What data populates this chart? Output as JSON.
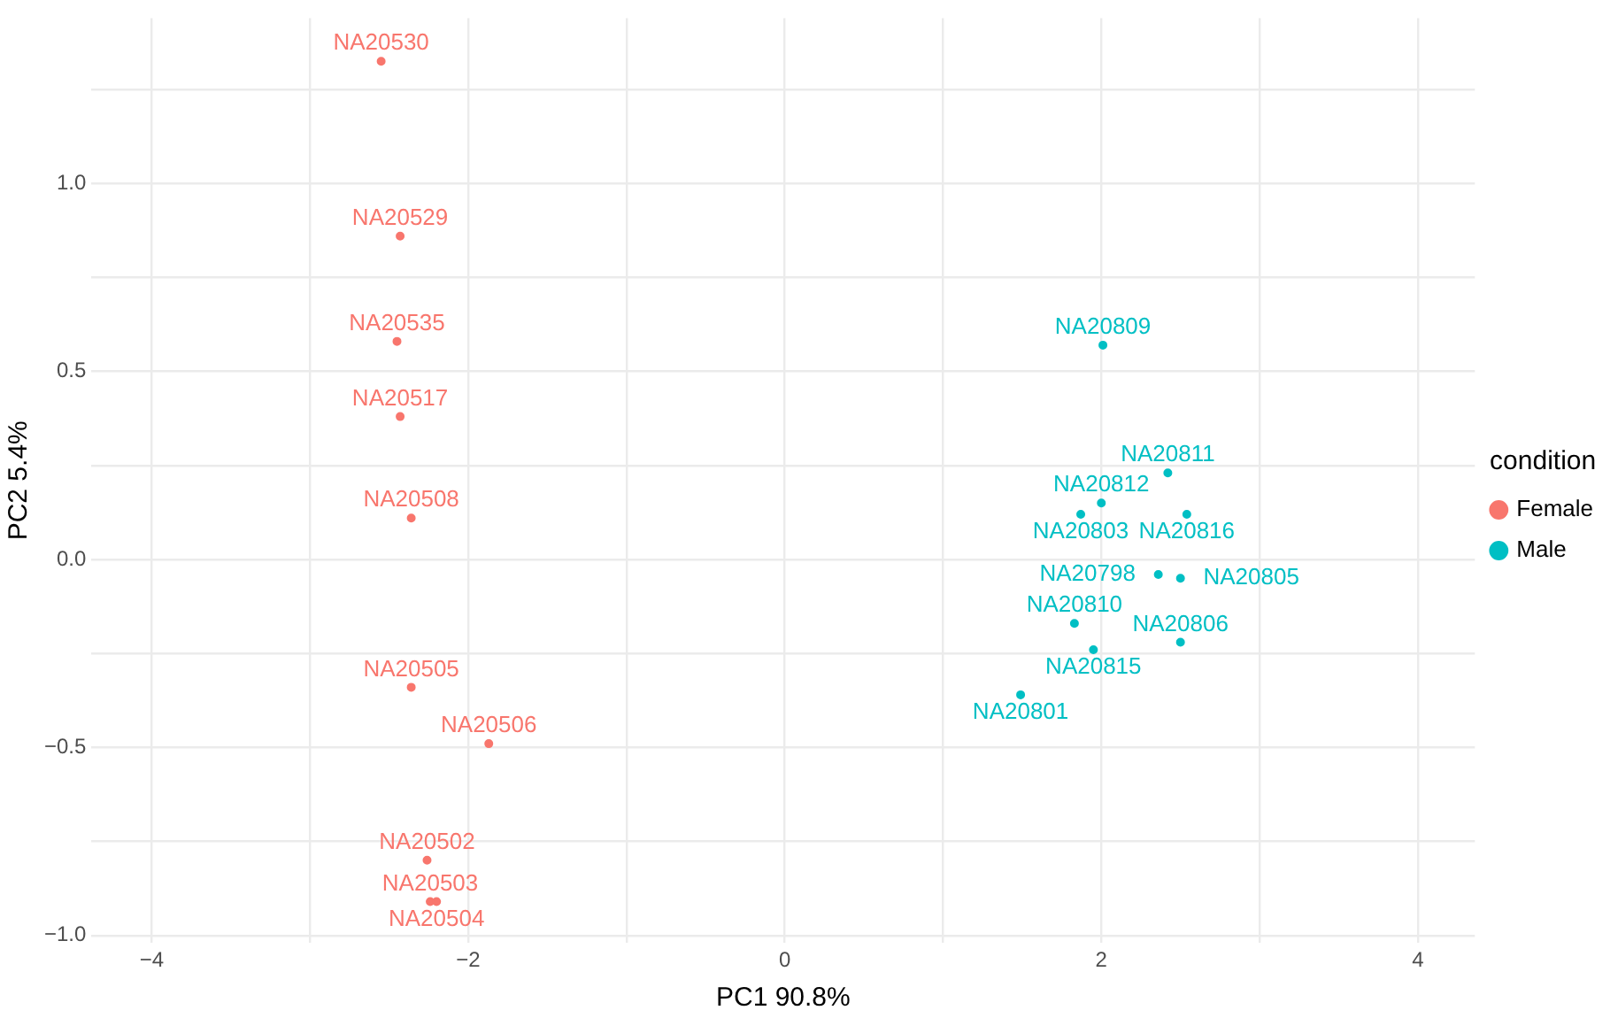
{
  "chart_data": {
    "type": "scatter",
    "xlabel": "PC1 90.8%",
    "ylabel": "PC2 5.4%",
    "legend_title": "condition",
    "legend": "right",
    "marker": "circle",
    "grid": true,
    "xlim": [
      -4.38,
      4.36
    ],
    "ylim": [
      -1.02,
      1.44
    ],
    "xticks": [
      {
        "value": -4,
        "label": "−4"
      },
      {
        "value": -3,
        "label": null
      },
      {
        "value": -2,
        "label": "−2"
      },
      {
        "value": -1,
        "label": null
      },
      0,
      {
        "value": 1,
        "label": null
      },
      2,
      {
        "value": 3,
        "label": null
      },
      4
    ],
    "yticks": [
      {
        "value": -1,
        "label": "−1.0"
      },
      {
        "value": -0.75,
        "label": null
      },
      {
        "value": -0.5,
        "label": "−0.5"
      },
      {
        "value": -0.25,
        "label": null
      },
      {
        "value": 0,
        "label": "0.0"
      },
      {
        "value": 0.25,
        "label": null
      },
      0.5,
      {
        "value": 0.75,
        "label": null
      },
      {
        "value": 1,
        "label": "1.0"
      },
      {
        "value": 1.25,
        "label": null
      }
    ],
    "series": [
      {
        "name": "Female",
        "color": "#f8766d",
        "x": [
          -2.55,
          -2.43,
          -2.45,
          -2.43,
          -2.36,
          -2.36,
          -1.87,
          -2.26,
          -2.24,
          -2.2
        ],
        "values": [
          1.325,
          0.86,
          0.58,
          0.38,
          0.11,
          -0.34,
          -0.49,
          -0.8,
          -0.91,
          -0.91
        ],
        "value_labels": [
          "NA20530",
          "NA20529",
          "NA20535",
          "NA20517",
          "NA20508",
          "NA20505",
          "NA20506",
          "NA20502",
          "NA20503",
          "NA20504"
        ]
      },
      {
        "name": "Male",
        "color": "#00bfc4",
        "x": [
          2.01,
          2.42,
          2.0,
          1.87,
          2.54,
          2.36,
          2.5,
          1.83,
          1.95,
          2.5,
          1.49
        ],
        "values": [
          0.57,
          0.23,
          0.15,
          0.12,
          0.12,
          -0.04,
          -0.05,
          -0.17,
          -0.24,
          -0.22,
          -0.36
        ],
        "value_labels": [
          "NA20809",
          "NA20811",
          "NA20812",
          "NA20803",
          "NA20816",
          "NA20798",
          "NA20805",
          "NA20810",
          "NA20815",
          "NA20806",
          "NA20801"
        ]
      }
    ]
  }
}
